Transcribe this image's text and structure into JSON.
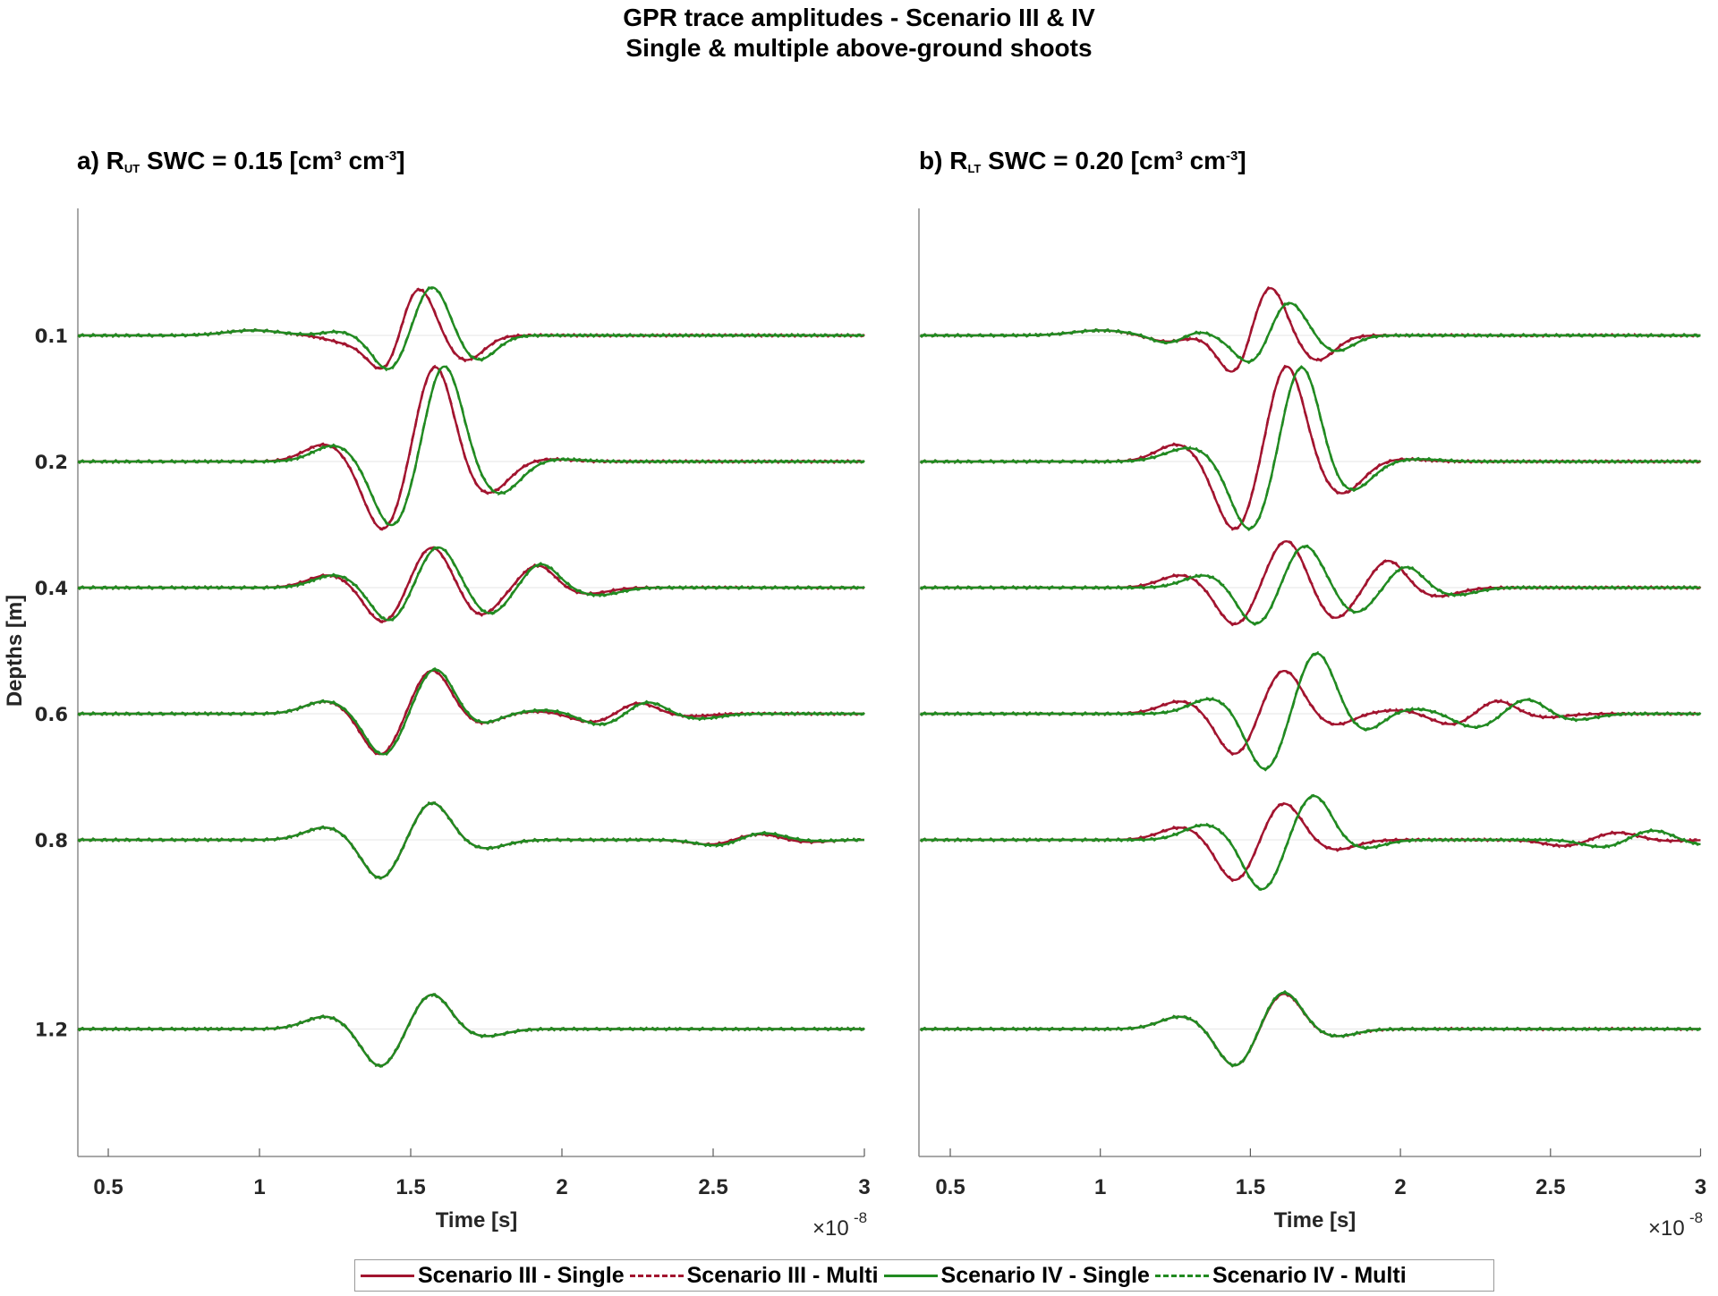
{
  "chart_data": {
    "type": "line",
    "title": "GPR trace amplitudes - Scenario III & IV",
    "subtitle": "Single & multiple above-ground shoots",
    "colors": {
      "scenario_iii": "#A2142F",
      "scenario_iv": "#218A21"
    },
    "legend": {
      "placement": "bottom-center",
      "entries": [
        {
          "label": "Scenario III - Single",
          "color": "#A2142F",
          "style": "solid"
        },
        {
          "label": "Scenario III - Multi",
          "color": "#A2142F",
          "style": "dashed"
        },
        {
          "label": "Scenario IV - Single",
          "color": "#218A21",
          "style": "solid"
        },
        {
          "label": "Scenario IV - Multi",
          "color": "#218A21",
          "style": "dashed"
        }
      ]
    },
    "panels": [
      {
        "id": "a",
        "title_prefix": "a) R",
        "title_sub": "UT",
        "title_main": " SWC = 0.15 [cm",
        "title_sup1": "3",
        "title_mid": " cm",
        "title_sup2": "-3",
        "title_end": "]",
        "xlabel": "Time [s]",
        "ylabel": "Depths [m]",
        "x_multiplier": "×10",
        "x_multiplier_exp": "-8",
        "xlim": [
          0.4,
          3.0
        ],
        "xticks": [
          "0.5",
          "1",
          "1.5",
          "2",
          "2.5",
          "3"
        ],
        "yticks": [
          "0.1",
          "0.2",
          "0.4",
          "0.6",
          "0.8",
          "1.2"
        ],
        "traces": [
          {
            "depth": "0.1",
            "iii": [
              [
                0.98,
                0.04,
                0.09
              ],
              [
                1.3,
                -0.06,
                0.07
              ],
              [
                1.42,
                -0.3,
                0.055
              ],
              [
                1.52,
                0.42,
                0.055
              ],
              [
                1.68,
                -0.2,
                0.06
              ]
            ],
            "iv": [
              [
                0.98,
                0.04,
                0.09
              ],
              [
                1.26,
                0.03,
                0.05
              ],
              [
                1.43,
                -0.28,
                0.055
              ],
              [
                1.57,
                0.4,
                0.055
              ],
              [
                1.72,
                -0.2,
                0.06
              ]
            ]
          },
          {
            "depth": "0.2",
            "iii": [
              [
                1.22,
                0.14,
                0.07
              ],
              [
                1.41,
                -0.55,
                0.065
              ],
              [
                1.58,
                0.78,
                0.06
              ],
              [
                1.75,
                -0.26,
                0.07
              ],
              [
                1.95,
                0.02,
                0.08
              ]
            ],
            "iv": [
              [
                1.25,
                0.13,
                0.07
              ],
              [
                1.44,
                -0.52,
                0.065
              ],
              [
                1.61,
                0.78,
                0.06
              ],
              [
                1.79,
                -0.26,
                0.07
              ],
              [
                1.98,
                0.02,
                0.08
              ]
            ]
          },
          {
            "depth": "0.4",
            "iii": [
              [
                1.23,
                0.1,
                0.07
              ],
              [
                1.41,
                -0.28,
                0.06
              ],
              [
                1.57,
                0.33,
                0.06
              ],
              [
                1.73,
                -0.22,
                0.06
              ],
              [
                1.92,
                0.18,
                0.055
              ],
              [
                2.08,
                -0.05,
                0.07
              ]
            ],
            "iv": [
              [
                1.25,
                0.1,
                0.07
              ],
              [
                1.43,
                -0.27,
                0.06
              ],
              [
                1.59,
                0.33,
                0.06
              ],
              [
                1.76,
                -0.21,
                0.06
              ],
              [
                1.93,
                0.19,
                0.055
              ],
              [
                2.12,
                -0.06,
                0.07
              ]
            ]
          },
          {
            "depth": "0.6",
            "iii": [
              [
                1.22,
                0.1,
                0.07
              ],
              [
                1.4,
                -0.33,
                0.06
              ],
              [
                1.57,
                0.35,
                0.06
              ],
              [
                1.73,
                -0.08,
                0.06
              ],
              [
                1.93,
                0.02,
                0.08
              ],
              [
                2.1,
                -0.07,
                0.07
              ],
              [
                2.25,
                0.09,
                0.06
              ],
              [
                2.42,
                -0.02,
                0.07
              ]
            ],
            "iv": [
              [
                1.22,
                0.1,
                0.07
              ],
              [
                1.41,
                -0.33,
                0.06
              ],
              [
                1.58,
                0.36,
                0.06
              ],
              [
                1.73,
                -0.08,
                0.06
              ],
              [
                1.95,
                0.03,
                0.08
              ],
              [
                2.13,
                -0.09,
                0.07
              ],
              [
                2.28,
                0.1,
                0.06
              ],
              [
                2.45,
                -0.04,
                0.07
              ]
            ]
          },
          {
            "depth": "0.8",
            "iii": [
              [
                1.22,
                0.1,
                0.07
              ],
              [
                1.4,
                -0.31,
                0.06
              ],
              [
                1.57,
                0.3,
                0.06
              ],
              [
                1.74,
                -0.07,
                0.07
              ],
              [
                2.5,
                -0.04,
                0.07
              ],
              [
                2.65,
                0.05,
                0.07
              ],
              [
                2.8,
                -0.02,
                0.07
              ]
            ],
            "iv": [
              [
                1.22,
                0.1,
                0.07
              ],
              [
                1.4,
                -0.31,
                0.06
              ],
              [
                1.57,
                0.3,
                0.06
              ],
              [
                1.74,
                -0.07,
                0.07
              ],
              [
                2.52,
                -0.05,
                0.07
              ],
              [
                2.66,
                0.06,
                0.07
              ],
              [
                2.82,
                -0.01,
                0.07
              ]
            ]
          },
          {
            "depth": "1.2",
            "iii": [
              [
                1.22,
                0.1,
                0.07
              ],
              [
                1.4,
                -0.3,
                0.06
              ],
              [
                1.57,
                0.28,
                0.06
              ],
              [
                1.74,
                -0.06,
                0.07
              ]
            ],
            "iv": [
              [
                1.22,
                0.1,
                0.07
              ],
              [
                1.4,
                -0.3,
                0.06
              ],
              [
                1.57,
                0.28,
                0.06
              ],
              [
                1.74,
                -0.06,
                0.07
              ]
            ]
          }
        ]
      },
      {
        "id": "b",
        "title_prefix": "b) R",
        "title_sub": "LT",
        "title_main": " SWC = 0.20 [cm",
        "title_sup1": "3",
        "title_mid": " cm",
        "title_sup2": "-3",
        "title_end": "]",
        "xlabel": "Time [s]",
        "x_multiplier": "×10",
        "x_multiplier_exp": "-8",
        "xlim": [
          0.4,
          3.0
        ],
        "xticks": [
          "0.5",
          "1",
          "1.5",
          "2",
          "2.5",
          "3"
        ],
        "traces": [
          {
            "depth": "0.1",
            "iii": [
              [
                1.0,
                0.04,
                0.09
              ],
              [
                1.22,
                -0.05,
                0.06
              ],
              [
                1.45,
                -0.33,
                0.055
              ],
              [
                1.56,
                0.42,
                0.055
              ],
              [
                1.72,
                -0.2,
                0.06
              ]
            ],
            "iv": [
              [
                1.0,
                0.04,
                0.09
              ],
              [
                1.22,
                -0.06,
                0.05
              ],
              [
                1.33,
                0.03,
                0.04
              ],
              [
                1.51,
                -0.25,
                0.06
              ],
              [
                1.62,
                0.3,
                0.06
              ],
              [
                1.78,
                -0.13,
                0.06
              ]
            ]
          },
          {
            "depth": "0.2",
            "iii": [
              [
                1.26,
                0.14,
                0.07
              ],
              [
                1.45,
                -0.55,
                0.065
              ],
              [
                1.62,
                0.78,
                0.06
              ],
              [
                1.8,
                -0.26,
                0.07
              ],
              [
                2.0,
                0.02,
                0.08
              ]
            ],
            "iv": [
              [
                1.3,
                0.11,
                0.08
              ],
              [
                1.5,
                -0.55,
                0.065
              ],
              [
                1.67,
                0.78,
                0.06
              ],
              [
                1.83,
                -0.24,
                0.07
              ],
              [
                2.05,
                0.02,
                0.08
              ]
            ]
          },
          {
            "depth": "0.4",
            "iii": [
              [
                1.27,
                0.1,
                0.07
              ],
              [
                1.45,
                -0.3,
                0.06
              ],
              [
                1.62,
                0.38,
                0.06
              ],
              [
                1.78,
                -0.25,
                0.06
              ],
              [
                1.96,
                0.22,
                0.055
              ],
              [
                2.12,
                -0.07,
                0.07
              ]
            ],
            "iv": [
              [
                1.35,
                0.1,
                0.07
              ],
              [
                1.52,
                -0.3,
                0.06
              ],
              [
                1.68,
                0.34,
                0.06
              ],
              [
                1.85,
                -0.2,
                0.06
              ],
              [
                2.02,
                0.17,
                0.055
              ],
              [
                2.18,
                -0.06,
                0.07
              ]
            ]
          },
          {
            "depth": "0.6",
            "iii": [
              [
                1.27,
                0.1,
                0.07
              ],
              [
                1.45,
                -0.33,
                0.06
              ],
              [
                1.61,
                0.35,
                0.06
              ],
              [
                1.78,
                -0.09,
                0.06
              ],
              [
                2.0,
                0.03,
                0.08
              ],
              [
                2.17,
                -0.09,
                0.07
              ],
              [
                2.32,
                0.11,
                0.06
              ],
              [
                2.48,
                -0.03,
                0.07
              ]
            ],
            "iv": [
              [
                1.37,
                0.12,
                0.07
              ],
              [
                1.55,
                -0.45,
                0.06
              ],
              [
                1.72,
                0.49,
                0.06
              ],
              [
                1.88,
                -0.14,
                0.06
              ],
              [
                2.05,
                0.04,
                0.08
              ],
              [
                2.25,
                -0.11,
                0.07
              ],
              [
                2.42,
                0.12,
                0.06
              ],
              [
                2.58,
                -0.05,
                0.07
              ]
            ]
          },
          {
            "depth": "0.8",
            "iii": [
              [
                1.27,
                0.1,
                0.07
              ],
              [
                1.45,
                -0.33,
                0.06
              ],
              [
                1.61,
                0.3,
                0.06
              ],
              [
                1.78,
                -0.08,
                0.07
              ],
              [
                2.55,
                -0.05,
                0.07
              ],
              [
                2.72,
                0.06,
                0.07
              ],
              [
                2.88,
                -0.01,
                0.07
              ]
            ],
            "iv": [
              [
                1.35,
                0.12,
                0.07
              ],
              [
                1.54,
                -0.4,
                0.06
              ],
              [
                1.71,
                0.36,
                0.06
              ],
              [
                1.87,
                -0.07,
                0.07
              ],
              [
                2.68,
                -0.06,
                0.07
              ],
              [
                2.84,
                0.08,
                0.07
              ],
              [
                3.0,
                -0.04,
                0.07
              ]
            ]
          },
          {
            "depth": "1.2",
            "iii": [
              [
                1.27,
                0.1,
                0.07
              ],
              [
                1.45,
                -0.3,
                0.06
              ],
              [
                1.61,
                0.29,
                0.06
              ],
              [
                1.78,
                -0.06,
                0.07
              ]
            ],
            "iv": [
              [
                1.27,
                0.1,
                0.07
              ],
              [
                1.45,
                -0.3,
                0.06
              ],
              [
                1.61,
                0.3,
                0.06
              ],
              [
                1.78,
                -0.06,
                0.07
              ]
            ]
          }
        ]
      }
    ]
  }
}
